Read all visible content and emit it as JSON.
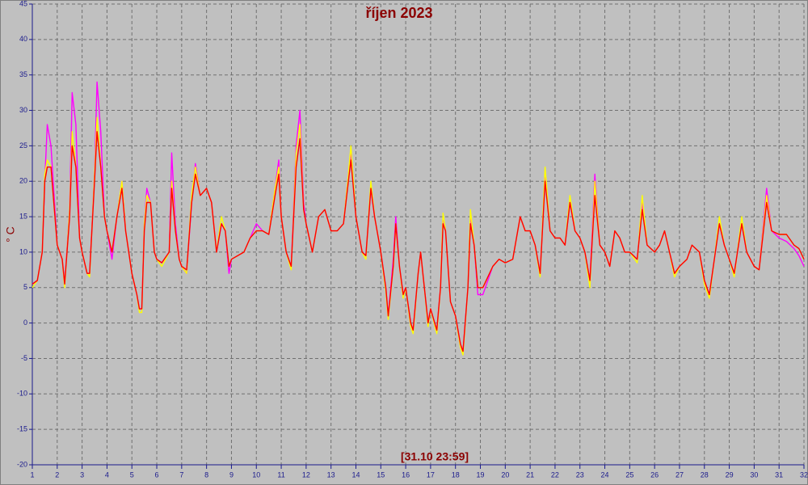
{
  "chart_data": {
    "type": "line",
    "title": "říjen 2023",
    "ylabel": "° C",
    "annotation": "[31.10 23:59]",
    "xlim": [
      1,
      32
    ],
    "ylim": [
      -20,
      45
    ],
    "xticks": [
      1,
      2,
      3,
      4,
      5,
      6,
      7,
      8,
      9,
      10,
      11,
      12,
      13,
      14,
      15,
      16,
      17,
      18,
      19,
      20,
      21,
      22,
      23,
      24,
      25,
      26,
      27,
      28,
      29,
      30,
      31,
      32
    ],
    "yticks": [
      -20,
      -15,
      -10,
      -5,
      0,
      5,
      10,
      15,
      20,
      25,
      30,
      35,
      40,
      45
    ],
    "grid": true,
    "x": [
      1,
      1.2,
      1.4,
      1.5,
      1.6,
      1.75,
      2,
      2.2,
      2.3,
      2.5,
      2.6,
      2.75,
      2.9,
      3,
      3.2,
      3.3,
      3.5,
      3.6,
      3.75,
      3.9,
      4,
      4.2,
      4.4,
      4.6,
      4.75,
      5,
      5.2,
      5.3,
      5.4,
      5.5,
      5.6,
      5.75,
      5.9,
      6,
      6.2,
      6.5,
      6.6,
      6.75,
      6.9,
      7,
      7.2,
      7.4,
      7.55,
      7.75,
      8,
      8.2,
      8.4,
      8.6,
      8.75,
      8.9,
      9,
      9.5,
      9.75,
      10,
      10.25,
      10.5,
      10.75,
      10.9,
      11,
      11.2,
      11.4,
      11.6,
      11.75,
      11.9,
      12,
      12.25,
      12.5,
      12.75,
      13,
      13.25,
      13.5,
      13.7,
      13.8,
      14,
      14.25,
      14.4,
      14.6,
      14.75,
      15,
      15.2,
      15.3,
      15.5,
      15.6,
      15.75,
      15.9,
      16,
      16.2,
      16.3,
      16.5,
      16.6,
      16.75,
      16.9,
      17,
      17.25,
      17.4,
      17.5,
      17.6,
      17.8,
      18,
      18.2,
      18.3,
      18.5,
      18.6,
      18.75,
      18.9,
      19.1,
      19.5,
      19.75,
      20,
      20.3,
      20.6,
      20.8,
      21,
      21.2,
      21.4,
      21.6,
      21.8,
      22,
      22.2,
      22.4,
      22.6,
      22.8,
      23,
      23.2,
      23.4,
      23.6,
      23.8,
      24,
      24.2,
      24.4,
      24.6,
      24.8,
      25,
      25.3,
      25.5,
      25.7,
      26,
      26.2,
      26.4,
      26.6,
      26.8,
      27,
      27.3,
      27.5,
      27.8,
      28,
      28.2,
      28.4,
      28.6,
      28.8,
      29,
      29.2,
      29.5,
      29.7,
      30,
      30.2,
      30.5,
      30.7,
      31,
      31.3,
      31.6,
      31.8,
      32
    ],
    "series": [
      {
        "color": "#ff00ff",
        "values": [
          5.5,
          6,
          10,
          20,
          28,
          25,
          11,
          9,
          5.5,
          16,
          32.5,
          28,
          12,
          10,
          7,
          7,
          21,
          34,
          27,
          15,
          13,
          9,
          15,
          20,
          13,
          7,
          4,
          2,
          2,
          14,
          19,
          17,
          10,
          9,
          8.5,
          10,
          24,
          14,
          9,
          8,
          7,
          17,
          22.5,
          18,
          19,
          17,
          10,
          14,
          13,
          7,
          9,
          10,
          12,
          14,
          13,
          12.5,
          19,
          23,
          15,
          10,
          8,
          25,
          30,
          17,
          14,
          10,
          15,
          16,
          13,
          13,
          14,
          21,
          24,
          15,
          10,
          9.5,
          19,
          15,
          10,
          5,
          1,
          9,
          15,
          8,
          4,
          5,
          0,
          -1,
          7,
          10,
          5,
          0,
          2,
          -1,
          5,
          15,
          13,
          3,
          1,
          -3,
          -4,
          5,
          15,
          11,
          4,
          4,
          8,
          9,
          8.5,
          9,
          15,
          13,
          13,
          11,
          7,
          21,
          13,
          12,
          12,
          11,
          17,
          13,
          12,
          10,
          6,
          21,
          11,
          10,
          8,
          13,
          12,
          10,
          10,
          9,
          17,
          11,
          10,
          11,
          13,
          10,
          7,
          8,
          9,
          11,
          10,
          6,
          4,
          9,
          14,
          11,
          9,
          7,
          14,
          10,
          8,
          7.5,
          19,
          13,
          12,
          11.5,
          10.5,
          9.5,
          8
        ]
      },
      {
        "color": "#ffff00",
        "values": [
          5,
          6,
          10,
          21,
          23,
          22,
          11,
          9,
          5,
          16,
          27,
          22,
          12,
          10,
          7,
          6.5,
          21,
          29,
          22,
          15,
          13,
          10,
          15,
          20,
          13,
          7,
          4,
          1.5,
          1.5,
          14,
          18,
          17,
          10,
          9,
          8,
          10,
          20,
          13,
          9,
          8,
          7,
          18,
          22,
          18,
          19,
          17,
          10,
          15,
          13,
          8,
          9,
          10,
          12,
          13,
          13,
          12.5,
          19,
          22,
          15,
          10,
          7.5,
          24,
          28,
          16,
          14,
          10,
          15,
          16,
          13,
          13,
          14,
          21,
          25,
          15,
          10,
          9,
          20,
          15,
          10,
          4.5,
          0.5,
          8,
          14,
          8,
          3.5,
          5,
          -0.5,
          -1.5,
          7,
          10,
          5,
          -0.5,
          2,
          -1.5,
          5,
          15.5,
          13,
          3,
          1,
          -3.5,
          -4.5,
          5,
          16,
          11,
          5,
          5,
          8,
          9,
          8.5,
          9,
          15,
          13,
          13,
          11,
          6.5,
          22,
          13,
          12,
          12,
          11,
          18,
          13,
          12,
          10,
          5,
          20,
          11,
          10,
          8,
          13,
          12,
          10,
          10,
          8.5,
          18,
          11,
          10,
          11,
          13,
          10,
          6.5,
          8,
          9,
          11,
          10,
          5.5,
          3.5,
          9,
          15,
          11,
          9,
          6.5,
          15,
          10,
          8,
          7.5,
          18,
          13,
          12.5,
          12.5,
          11,
          10.5,
          9
        ]
      },
      {
        "color": "#ff0000",
        "values": [
          5.5,
          6,
          10,
          20,
          22,
          22,
          11,
          9,
          5.5,
          15,
          25,
          22,
          12,
          10,
          7,
          7,
          20,
          27,
          22,
          15,
          13,
          10,
          15,
          19,
          13,
          7,
          4,
          2,
          2,
          13,
          17,
          17,
          10,
          9,
          8.5,
          10,
          19,
          13,
          9,
          8,
          7.5,
          17,
          21,
          18,
          19,
          17,
          10,
          14,
          13,
          8,
          9,
          10,
          12,
          13,
          13,
          12.5,
          18,
          21,
          15,
          10,
          8,
          22,
          26,
          16,
          14,
          10,
          15,
          16,
          13,
          13,
          14,
          20,
          23,
          15,
          10,
          9.5,
          19,
          15,
          10,
          5,
          1,
          8,
          14,
          8,
          4,
          5,
          0,
          -1,
          7,
          10,
          5,
          0,
          2,
          -1,
          5,
          14,
          13,
          3,
          1,
          -3,
          -4,
          5,
          14,
          11,
          5,
          5,
          8,
          9,
          8.5,
          9,
          15,
          13,
          13,
          11,
          7,
          20,
          13,
          12,
          12,
          11,
          17,
          13,
          12,
          10,
          6,
          18,
          11,
          10,
          8,
          13,
          12,
          10,
          10,
          9,
          16,
          11,
          10,
          11,
          13,
          10,
          7,
          8,
          9,
          11,
          10,
          6,
          4,
          9,
          14,
          11,
          9,
          7,
          14,
          10,
          8,
          7.5,
          17,
          13,
          12.5,
          12.5,
          11,
          10.5,
          9
        ]
      }
    ]
  }
}
